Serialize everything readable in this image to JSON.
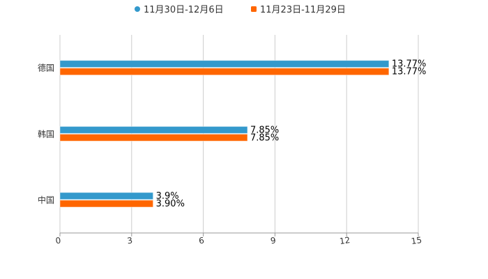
{
  "chart_data": {
    "type": "bar",
    "orientation": "horizontal",
    "categories": [
      "德国",
      "韩国",
      "中国"
    ],
    "series": [
      {
        "name": "11月30日-12月6日",
        "color": "#3399cc",
        "values": [
          13.77,
          7.85,
          3.9
        ],
        "labels": [
          "13.77%",
          "7.85%",
          "3.9%"
        ]
      },
      {
        "name": "11月23日-11月29日",
        "color": "#ff6600",
        "values": [
          13.77,
          7.85,
          3.9
        ],
        "labels": [
          "13.77%",
          "7.85%",
          "3.90%"
        ]
      }
    ],
    "xlim": [
      0,
      15
    ],
    "xticks": [
      0,
      3,
      6,
      9,
      12,
      15
    ],
    "grid": true,
    "legend": "top-center"
  }
}
